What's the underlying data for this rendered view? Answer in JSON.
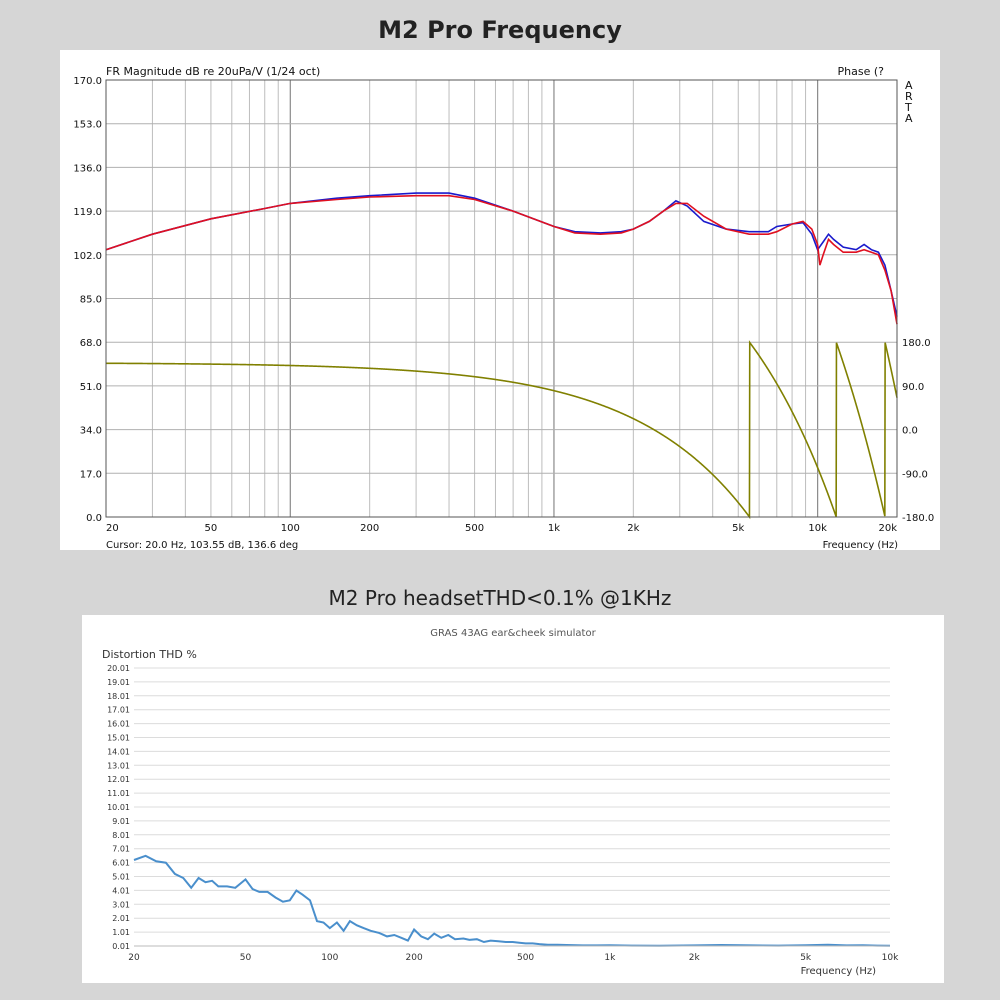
{
  "titles": {
    "frequency": "M2 Pro Frequency",
    "thd": "M2 Pro headsetTHD<0.1% @1KHz"
  },
  "chart_data": [
    {
      "type": "line",
      "title": "FR Magnitude dB re 20uPa/V (1/24 oct)",
      "right_title": "Phase (?",
      "side_label": [
        "A",
        "R",
        "T",
        "A"
      ],
      "xlabel": "Frequency (Hz)",
      "cursor_text": "Cursor: 20.0 Hz, 103.55 dB, 136.6 deg",
      "x_scale": "log",
      "xlim": [
        20,
        20000
      ],
      "ylim": [
        0,
        170
      ],
      "y2lim": [
        -180,
        180
      ],
      "x_ticks": [
        "20",
        "50",
        "100",
        "200",
        "500",
        "1k",
        "2k",
        "5k",
        "10k",
        "20k"
      ],
      "y_ticks": [
        "0.0",
        "17.0",
        "34.0",
        "51.0",
        "68.0",
        "85.0",
        "102.0",
        "119.0",
        "136.0",
        "153.0",
        "170.0"
      ],
      "y2_ticks": [
        "-180.0",
        "-90.0",
        "0.0",
        "90.0",
        "180.0"
      ],
      "grid": true,
      "colors": {
        "left": "#1a1acc",
        "right": "#e01020",
        "phase": "#808000"
      },
      "series": [
        {
          "key": "left",
          "x": [
            20,
            30,
            50,
            80,
            100,
            150,
            200,
            300,
            400,
            500,
            700,
            1000,
            1200,
            1500,
            1800,
            2000,
            2300,
            2600,
            2900,
            3200,
            3700,
            4500,
            5500,
            6500,
            7000,
            8000,
            8800,
            9500,
            10000,
            10500,
            11000,
            11500,
            12500,
            14000,
            15000,
            16000,
            17000,
            18000,
            19000,
            20000
          ],
          "y": [
            104,
            110,
            116,
            120,
            122,
            124,
            125,
            126,
            126,
            124,
            119,
            113,
            111,
            110.5,
            111,
            112,
            115,
            119,
            123,
            121,
            115,
            112,
            111,
            111,
            113,
            114,
            114.5,
            110,
            104,
            107,
            110,
            108,
            105,
            104,
            106,
            104,
            103,
            98,
            88,
            78
          ]
        },
        {
          "key": "right",
          "x": [
            20,
            30,
            50,
            80,
            100,
            150,
            200,
            300,
            400,
            500,
            700,
            1000,
            1200,
            1500,
            1800,
            2000,
            2300,
            2600,
            2900,
            3200,
            3700,
            4500,
            5500,
            6500,
            7000,
            8000,
            8800,
            9500,
            10000,
            10200,
            10500,
            11000,
            11500,
            12500,
            14000,
            15000,
            16000,
            17000,
            18000,
            19000,
            20000
          ],
          "y": [
            104,
            110,
            116,
            120,
            122,
            123.5,
            124.5,
            125,
            125,
            123.5,
            119,
            113,
            110.5,
            110,
            110.5,
            112,
            115,
            119,
            122,
            122,
            117,
            112,
            110,
            110,
            111,
            114,
            115,
            112,
            106,
            98,
            102,
            108,
            106,
            103,
            103,
            104,
            103,
            102,
            96,
            88,
            75
          ]
        }
      ],
      "phase": {
        "start_deg": 136.6,
        "delay_ms": 0.16,
        "y": "wrapped phase (deg)"
      }
    },
    {
      "type": "line",
      "title": "GRAS 43AG ear&cheek simulator",
      "ylabel": "Distortion THD %",
      "xlabel": "Frequency (Hz)",
      "x_scale": "log",
      "xlim": [
        20,
        10000
      ],
      "ylim": [
        0.01,
        20.01
      ],
      "x_ticks": [
        "20",
        "50",
        "100",
        "200",
        "500",
        "1k",
        "2k",
        "5k",
        "10k"
      ],
      "y_ticks": [
        "0.01",
        "1.01",
        "2.01",
        "3.01",
        "4.01",
        "5.01",
        "6.01",
        "7.01",
        "8.01",
        "9.01",
        "10.01",
        "11.01",
        "12.01",
        "13.01",
        "14.01",
        "15.01",
        "16.01",
        "17.01",
        "18.01",
        "19.01",
        "20.01"
      ],
      "grid": true,
      "colors": {
        "line": "#4a8fcc"
      },
      "series": [
        {
          "x": [
            20,
            22,
            24,
            26,
            28,
            30,
            32,
            34,
            36,
            38,
            40,
            43,
            46,
            50,
            53,
            56,
            60,
            64,
            68,
            72,
            76,
            80,
            85,
            90,
            95,
            100,
            106,
            112,
            118,
            125,
            132,
            140,
            150,
            160,
            170,
            180,
            190,
            200,
            212,
            224,
            236,
            250,
            265,
            280,
            300,
            315,
            335,
            355,
            375,
            400,
            425,
            450,
            475,
            500,
            530,
            560,
            600,
            650,
            700,
            800,
            900,
            1000,
            1200,
            1500,
            2000,
            2500,
            3000,
            4000,
            5000,
            6000,
            7000,
            8000,
            9000,
            10000
          ],
          "y": [
            6.2,
            6.5,
            6.1,
            6.0,
            5.2,
            4.9,
            4.2,
            4.9,
            4.6,
            4.7,
            4.3,
            4.3,
            4.2,
            4.8,
            4.1,
            3.9,
            3.9,
            3.5,
            3.2,
            3.3,
            4.0,
            3.7,
            3.3,
            1.8,
            1.7,
            1.3,
            1.7,
            1.1,
            1.8,
            1.5,
            1.3,
            1.1,
            0.95,
            0.7,
            0.8,
            0.6,
            0.4,
            1.2,
            0.7,
            0.5,
            0.9,
            0.6,
            0.8,
            0.5,
            0.55,
            0.45,
            0.5,
            0.3,
            0.4,
            0.35,
            0.3,
            0.3,
            0.25,
            0.2,
            0.2,
            0.15,
            0.1,
            0.1,
            0.08,
            0.05,
            0.05,
            0.06,
            0.04,
            0.03,
            0.05,
            0.08,
            0.06,
            0.04,
            0.06,
            0.1,
            0.05,
            0.06,
            0.04,
            0.03
          ]
        }
      ]
    }
  ]
}
